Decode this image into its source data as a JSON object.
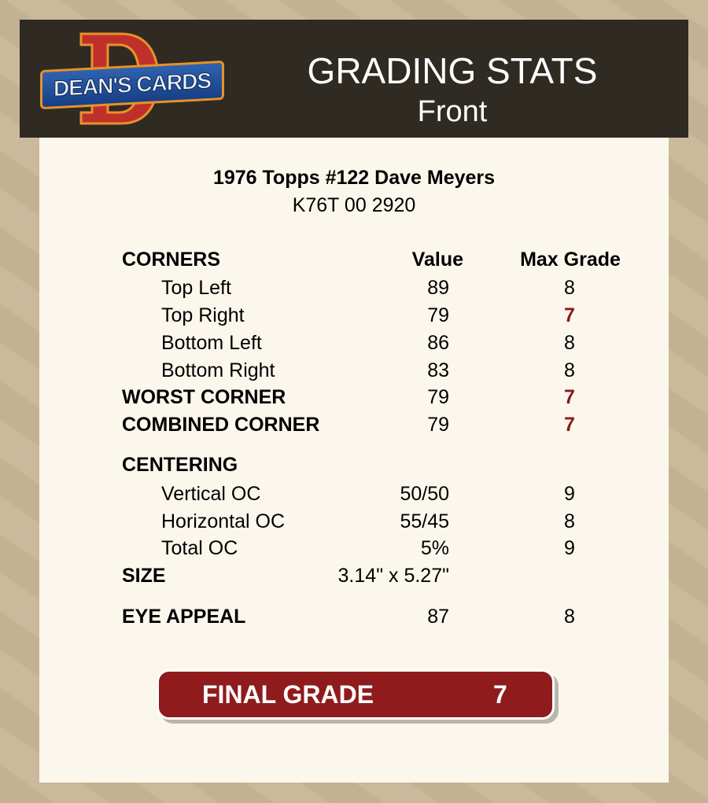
{
  "header": {
    "logo_text": "DEAN'S CARDS",
    "logo_letter": "D",
    "title": "GRADING STATS",
    "subtitle": "Front"
  },
  "card": {
    "name": "1976 Topps #122 Dave Meyers",
    "code": "K76T 00 2920"
  },
  "columns": {
    "section": "CORNERS",
    "value": "Value",
    "max_grade": "Max Grade"
  },
  "rows": [
    {
      "label": "Top Left",
      "value": "89",
      "max": "8",
      "style": "sub",
      "highlight": false
    },
    {
      "label": "Top Right",
      "value": "79",
      "max": "7",
      "style": "sub",
      "highlight": true
    },
    {
      "label": "Bottom Left",
      "value": "86",
      "max": "8",
      "style": "sub",
      "highlight": false
    },
    {
      "label": "Bottom Right",
      "value": "83",
      "max": "8",
      "style": "sub",
      "highlight": false
    },
    {
      "label": "WORST CORNER",
      "value": "79",
      "max": "7",
      "style": "bold",
      "highlight": true
    },
    {
      "label": "COMBINED CORNER",
      "value": "79",
      "max": "7",
      "style": "bold",
      "highlight": true
    },
    {
      "label": "CENTERING",
      "value": "",
      "max": "",
      "style": "bold",
      "highlight": false
    },
    {
      "label": "Vertical OC",
      "value": "50/50",
      "max": "9",
      "style": "sub",
      "highlight": false
    },
    {
      "label": "Horizontal OC",
      "value": "55/45",
      "max": "8",
      "style": "sub",
      "highlight": false
    },
    {
      "label": "Total OC",
      "value": "5%",
      "max": "9",
      "style": "sub",
      "highlight": false
    },
    {
      "label": "SIZE",
      "value": "3.14\" x 5.27\"",
      "max": "",
      "style": "bold",
      "highlight": false
    },
    {
      "label": "EYE APPEAL",
      "value": "87",
      "max": "8",
      "style": "bold",
      "highlight": false
    }
  ],
  "final": {
    "label": "FINAL GRADE",
    "value": "7"
  },
  "colors": {
    "background": "#c9b799",
    "header": "#2f2a22",
    "panel": "#fcf7ed",
    "highlight": "#8b1a1a",
    "final_bg": "#8f1b1d"
  }
}
